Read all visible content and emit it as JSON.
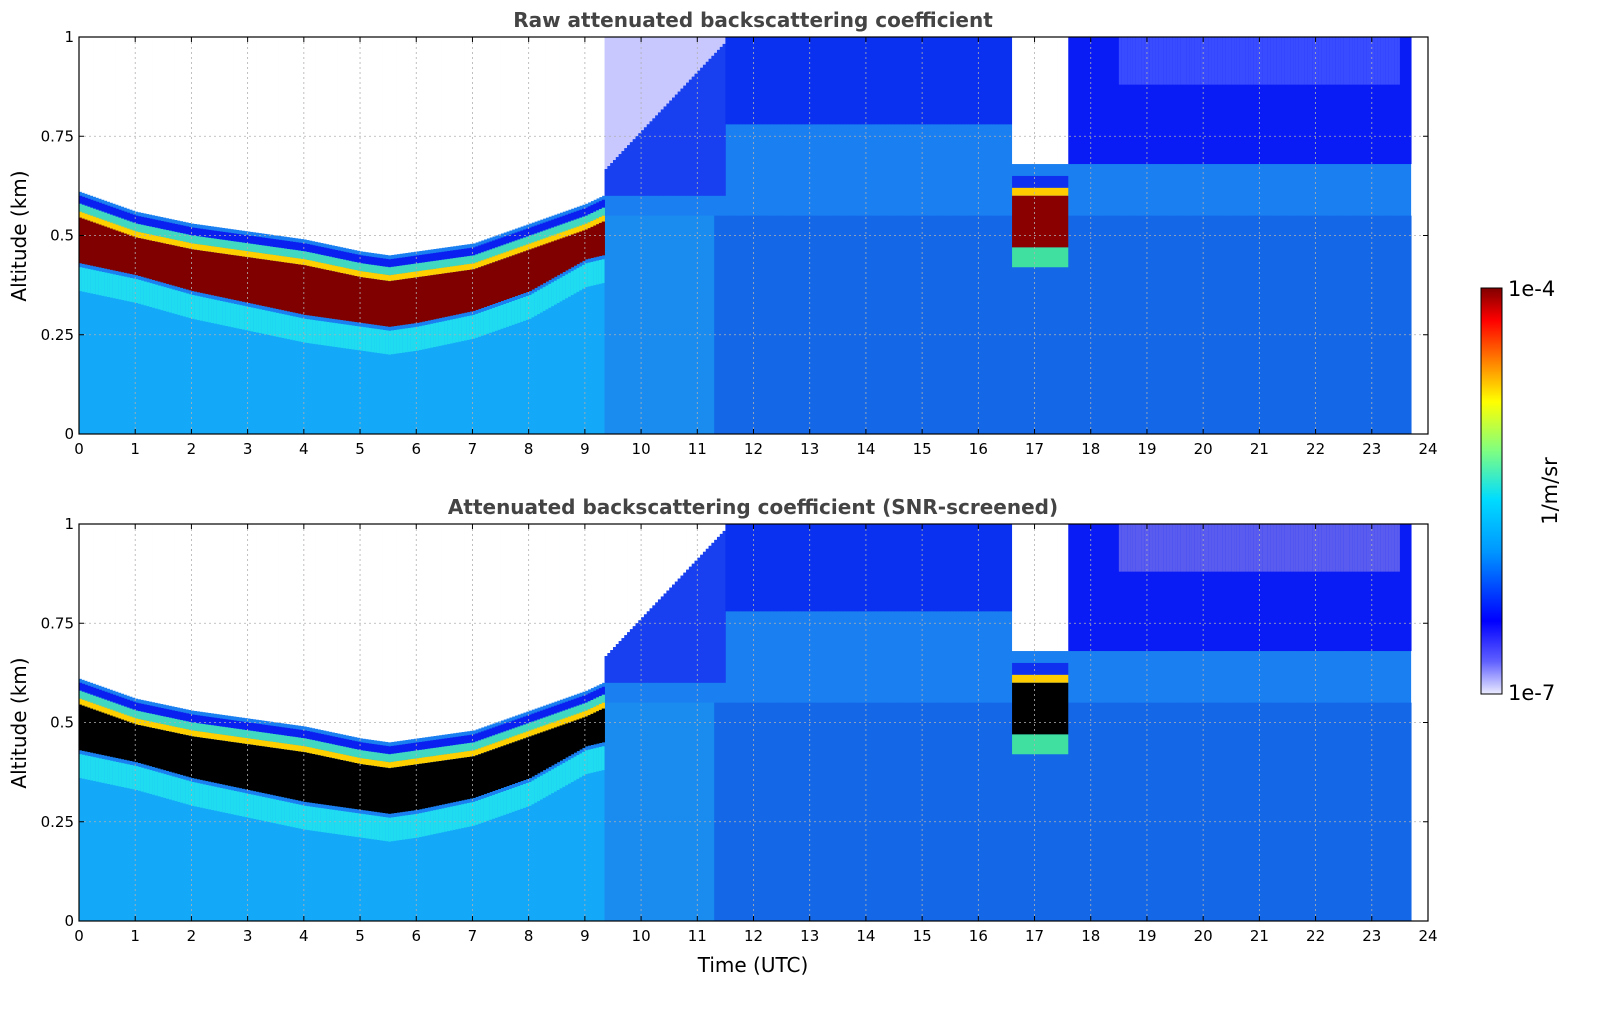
{
  "chart_data": [
    {
      "type": "heatmap",
      "title": "Raw attenuated backscattering coefficient",
      "xlabel": "",
      "ylabel": "Altitude (km)",
      "xlim": [
        0,
        24
      ],
      "ylim": [
        0,
        1
      ],
      "xticks": [
        "0",
        "1",
        "2",
        "3",
        "4",
        "5",
        "6",
        "7",
        "8",
        "9",
        "10",
        "11",
        "12",
        "13",
        "14",
        "15",
        "16",
        "17",
        "18",
        "19",
        "20",
        "21",
        "22",
        "23",
        "24"
      ],
      "yticks": [
        "0",
        "0.25",
        "0.5",
        "0.75",
        "1"
      ],
      "grid": true,
      "data_end_time": 23.7,
      "cloud_base_layer": {
        "description_units": "km",
        "time": [
          0,
          1,
          2,
          3,
          4,
          5,
          5.5,
          6,
          7,
          8,
          9,
          9.3
        ],
        "base": [
          0.42,
          0.39,
          0.35,
          0.32,
          0.29,
          0.27,
          0.26,
          0.27,
          0.3,
          0.35,
          0.43,
          0.44
        ],
        "top": [
          0.58,
          0.53,
          0.5,
          0.48,
          0.46,
          0.43,
          0.42,
          0.43,
          0.45,
          0.5,
          0.55,
          0.57
        ]
      },
      "second_cloud": {
        "time": [
          16.6,
          17.6
        ],
        "base": 0.47,
        "top": 0.62
      },
      "no_signal_gap": {
        "time": [
          16.6,
          17.6
        ],
        "altitude": [
          0.68,
          1.0
        ]
      }
    },
    {
      "type": "heatmap",
      "title": "Attenuated backscattering coefficient (SNR-screened)",
      "xlabel": "Time (UTC)",
      "ylabel": "Altitude (km)",
      "xlim": [
        0,
        24
      ],
      "ylim": [
        0,
        1
      ],
      "xticks": [
        "0",
        "1",
        "2",
        "3",
        "4",
        "5",
        "6",
        "7",
        "8",
        "9",
        "10",
        "11",
        "12",
        "13",
        "14",
        "15",
        "16",
        "17",
        "18",
        "19",
        "20",
        "21",
        "22",
        "23",
        "24"
      ],
      "yticks": [
        "0",
        "0.25",
        "0.5",
        "0.75",
        "1"
      ],
      "grid": true,
      "data_end_time": 23.7,
      "screened_color": "#000000"
    }
  ],
  "colorbar": {
    "label": "1/m/sr",
    "max_label": "1e-4",
    "min_label": "1e-7",
    "scale": "log",
    "colors": [
      "#ebebff",
      "#0000ff",
      "#0096ff",
      "#00dcff",
      "#80ff80",
      "#ffff00",
      "#ff8000",
      "#ff0000",
      "#800000"
    ]
  }
}
